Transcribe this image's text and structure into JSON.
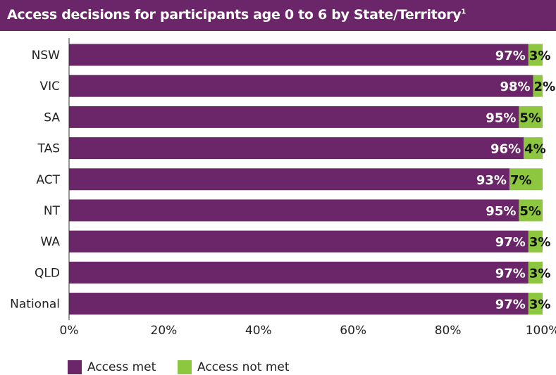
{
  "chart_data": {
    "type": "bar",
    "orientation": "horizontal",
    "stacked": true,
    "title": "Access decisions for participants age 0 to 6 by State/Territory",
    "title_footnote": "1",
    "categories": [
      "NSW",
      "VIC",
      "SA",
      "TAS",
      "ACT",
      "NT",
      "WA",
      "QLD",
      "National"
    ],
    "series": [
      {
        "name": "Access met",
        "color": "#6b2569",
        "values": [
          97,
          98,
          95,
          96,
          93,
          95,
          97,
          97,
          97
        ]
      },
      {
        "name": "Access not met",
        "color": "#8dc63f",
        "values": [
          3,
          2,
          5,
          4,
          7,
          5,
          3,
          3,
          3
        ]
      }
    ],
    "data_labels": [
      [
        "97%",
        "98%",
        "95%",
        "96%",
        "93%",
        "95%",
        "97%",
        "97%",
        "97%"
      ],
      [
        "3%",
        "2%",
        "5%",
        "4%",
        "7%",
        "5%",
        "3%",
        "3%",
        "3%"
      ]
    ],
    "xlim": [
      0,
      100
    ],
    "x_ticks": [
      "0%",
      "20%",
      "40%",
      "60%",
      "80%",
      "100%"
    ],
    "grid": false,
    "legend_position": "bottom-left"
  }
}
